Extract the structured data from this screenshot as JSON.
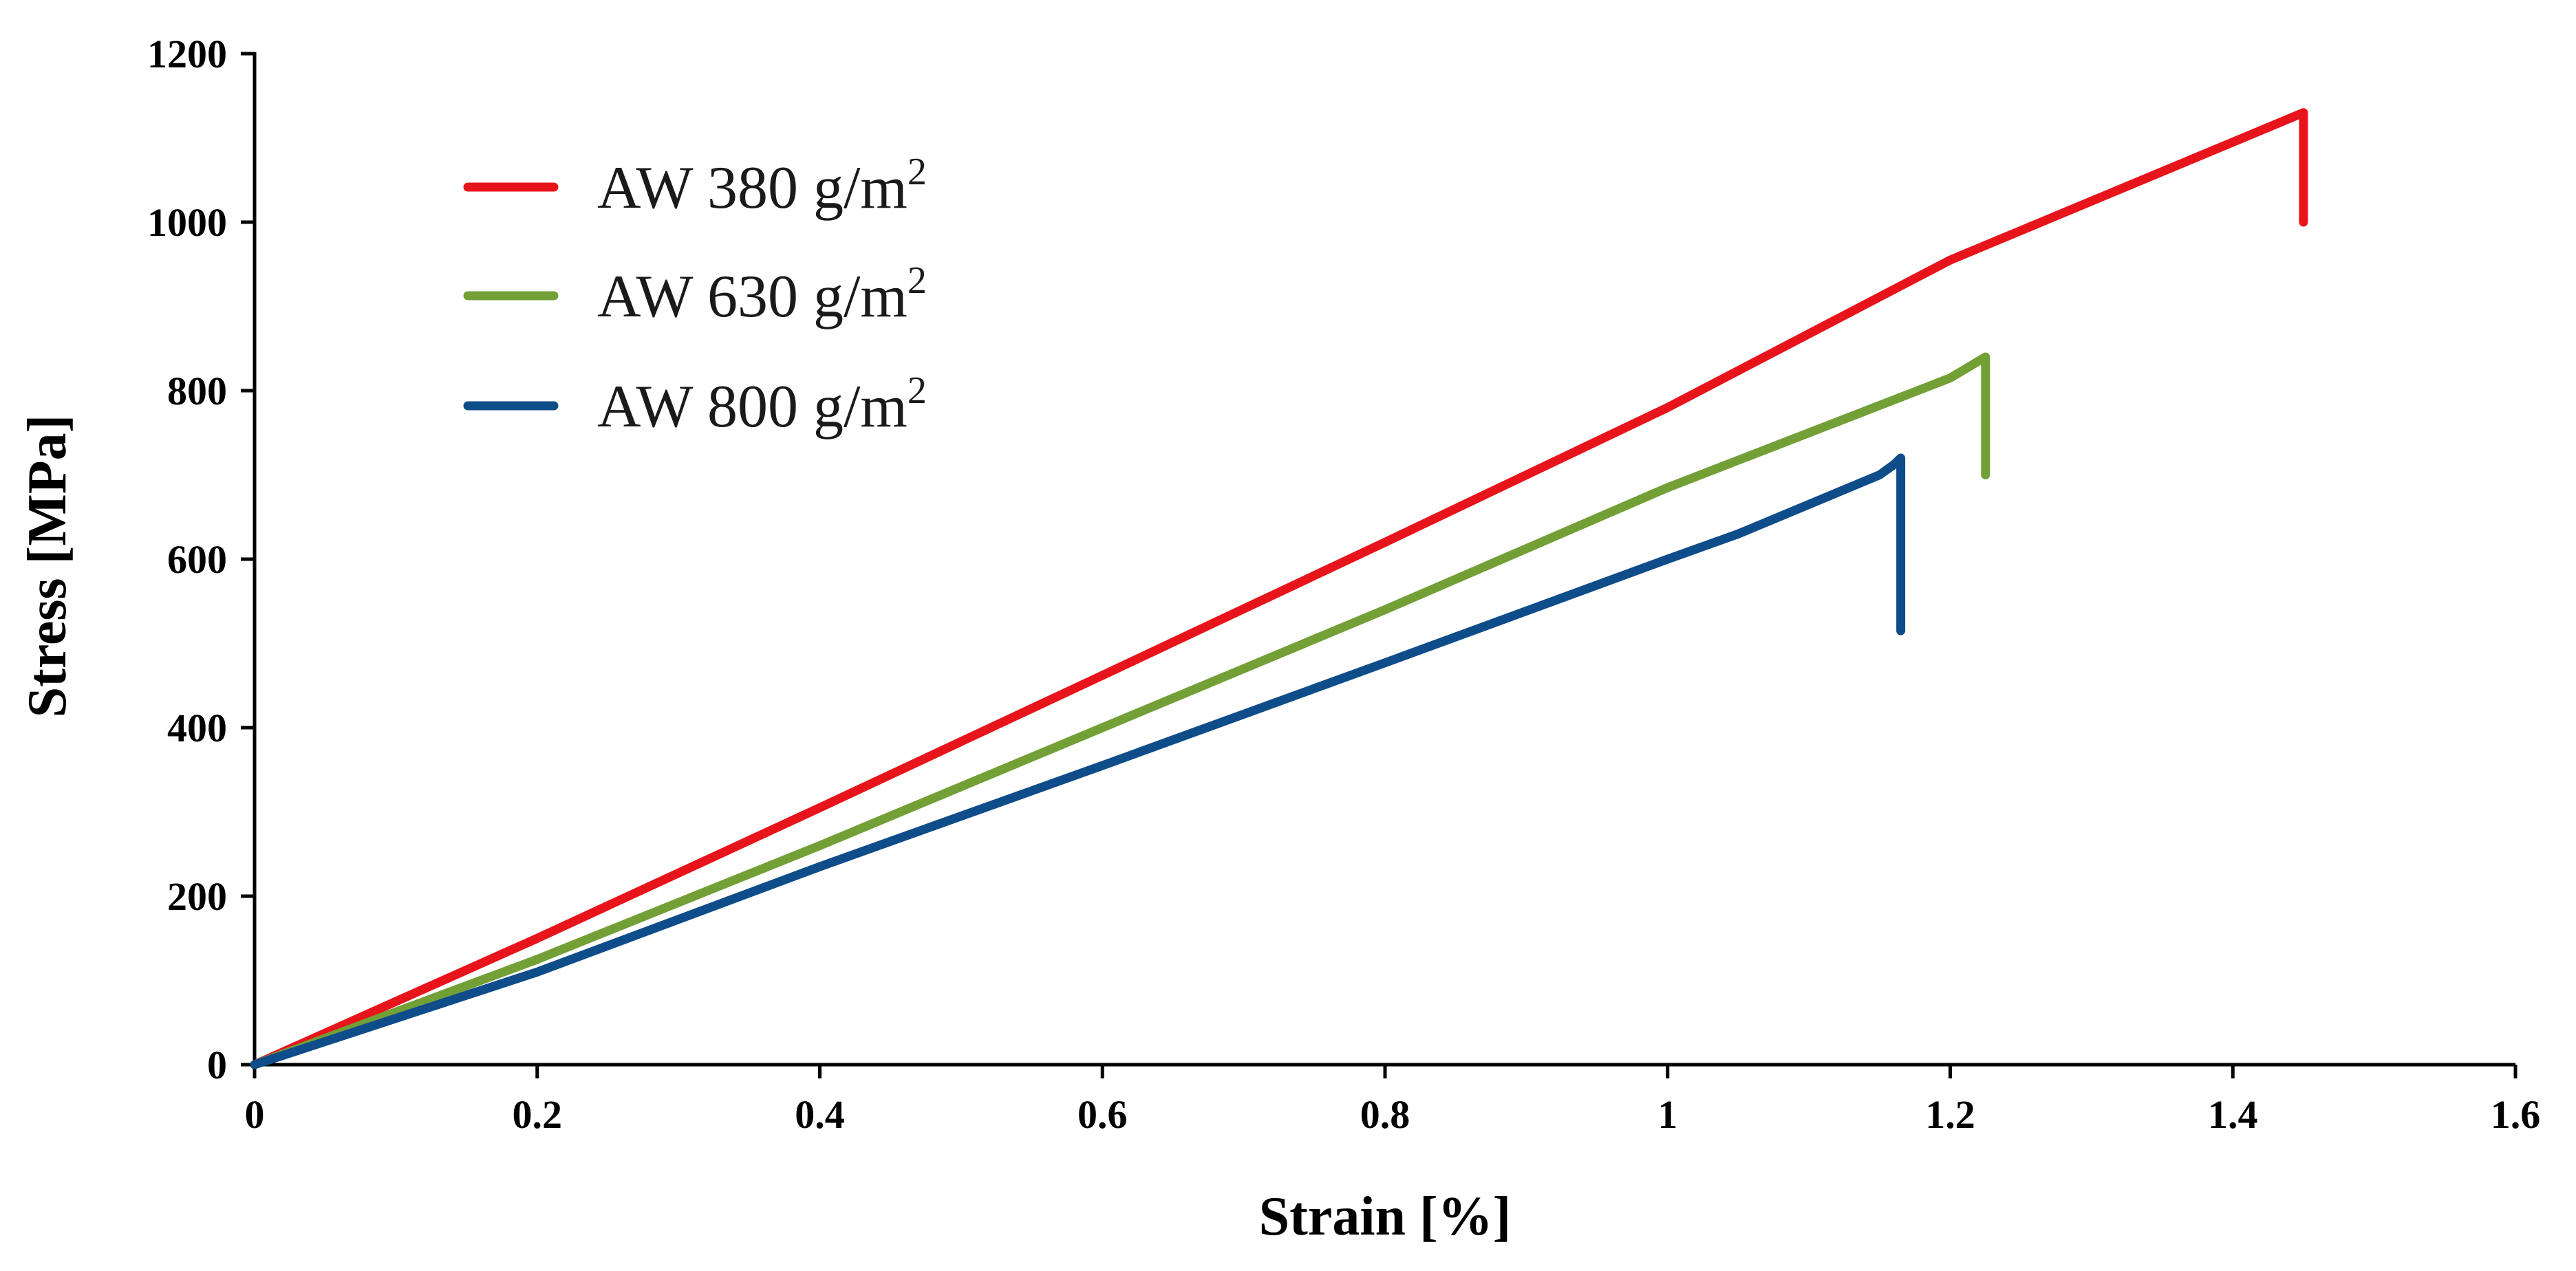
{
  "chart_data": {
    "type": "line",
    "title": "",
    "xlabel": "Strain [%]",
    "ylabel": "Stress [MPa]",
    "xlim": [
      0,
      1.6
    ],
    "ylim": [
      0,
      1200
    ],
    "xticks": [
      0,
      0.2,
      0.4,
      0.6,
      0.8,
      1.0,
      1.2,
      1.4,
      1.6
    ],
    "xtick_labels": [
      "0",
      "0.2",
      "0.4",
      "0.6",
      "0.8",
      "1",
      "1.2",
      "1.4",
      "1.6"
    ],
    "yticks": [
      0,
      200,
      400,
      600,
      800,
      1000,
      1200
    ],
    "ytick_labels": [
      "0",
      "200",
      "400",
      "600",
      "800",
      "1000",
      "1200"
    ],
    "grid": false,
    "legend_position": "top-left",
    "series": [
      {
        "name": "AW 380 g/m",
        "unit_superscript": "2",
        "color": "#e8141b",
        "x": [
          0,
          0.2,
          0.4,
          0.6,
          0.8,
          1.0,
          1.2,
          1.45,
          1.45
        ],
        "y": [
          0,
          150,
          305,
          462,
          620,
          780,
          955,
          1130,
          1000
        ]
      },
      {
        "name": "AW 630 g/m",
        "unit_superscript": "2",
        "color": "#72a037",
        "x": [
          0,
          0.2,
          0.4,
          0.6,
          0.8,
          1.0,
          1.1,
          1.2,
          1.225,
          1.225
        ],
        "y": [
          0,
          125,
          260,
          400,
          540,
          685,
          750,
          815,
          840,
          700
        ]
      },
      {
        "name": "AW 800 g/m",
        "unit_superscript": "2",
        "color": "#0f4c8a",
        "x": [
          0,
          0.2,
          0.4,
          0.6,
          0.8,
          1.0,
          1.05,
          1.1,
          1.15,
          1.16,
          1.165,
          1.165
        ],
        "y": [
          0,
          110,
          235,
          355,
          477,
          600,
          630,
          665,
          700,
          712,
          720,
          515
        ]
      }
    ]
  }
}
